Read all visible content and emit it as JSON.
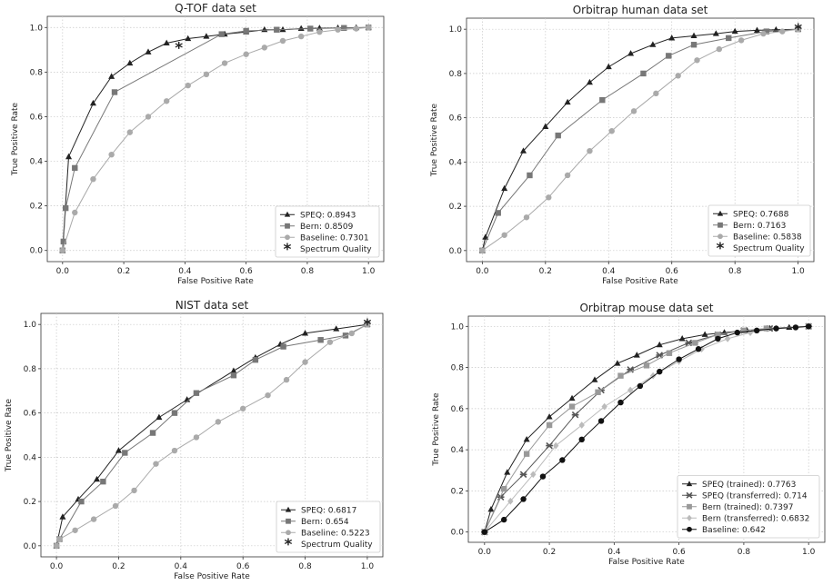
{
  "chart_data": [
    {
      "type": "line",
      "title": "Q-TOF data set",
      "xlabel": "False Positive Rate",
      "ylabel": "True Positive Rate",
      "xlim": [
        -0.05,
        1.05
      ],
      "ylim": [
        -0.05,
        1.05
      ],
      "xticks": [
        "0.0",
        "0.2",
        "0.4",
        "0.6",
        "0.8",
        "1.0"
      ],
      "yticks": [
        "0.0",
        "0.2",
        "0.4",
        "0.6",
        "0.8",
        "1.0"
      ],
      "grid": true,
      "legend_position": "lower-right",
      "series": [
        {
          "name": "SPEQ: 0.8943",
          "color": "#222222",
          "marker": "triangle",
          "x": [
            0,
            0.02,
            0.1,
            0.16,
            0.22,
            0.28,
            0.34,
            0.41,
            0.47,
            0.53,
            0.6,
            0.66,
            0.72,
            0.78,
            0.84,
            0.9,
            0.96,
            1.0
          ],
          "y": [
            0,
            0.42,
            0.66,
            0.78,
            0.84,
            0.89,
            0.93,
            0.95,
            0.96,
            0.97,
            0.98,
            0.99,
            0.99,
            0.995,
            0.997,
            0.998,
            0.999,
            1.0
          ]
        },
        {
          "name": "Bern: 0.8509",
          "color": "#777777",
          "marker": "square",
          "x": [
            0,
            0.003,
            0.01,
            0.04,
            0.17,
            0.52,
            0.6,
            0.7,
            0.81,
            0.92,
            1.0
          ],
          "y": [
            0,
            0.04,
            0.19,
            0.37,
            0.71,
            0.97,
            0.985,
            0.99,
            0.995,
            0.998,
            1.0
          ]
        },
        {
          "name": "Baseline: 0.7301",
          "color": "#aaaaaa",
          "marker": "circle",
          "x": [
            0,
            0.04,
            0.1,
            0.16,
            0.22,
            0.28,
            0.34,
            0.41,
            0.47,
            0.53,
            0.6,
            0.66,
            0.72,
            0.78,
            0.84,
            0.9,
            0.96,
            1.0
          ],
          "y": [
            0,
            0.17,
            0.32,
            0.43,
            0.53,
            0.6,
            0.67,
            0.74,
            0.79,
            0.84,
            0.88,
            0.91,
            0.94,
            0.96,
            0.98,
            0.99,
            0.995,
            1.0
          ]
        },
        {
          "name": "Spectrum Quality",
          "color": "#222222",
          "marker": "star",
          "x": [
            0.38
          ],
          "y": [
            0.91
          ]
        }
      ]
    },
    {
      "type": "line",
      "title": "Orbitrap human data set",
      "xlabel": "False Positive Rate",
      "ylabel": "True Positive Rate",
      "xlim": [
        -0.05,
        1.05
      ],
      "ylim": [
        -0.05,
        1.05
      ],
      "xticks": [
        "0.0",
        "0.2",
        "0.4",
        "0.6",
        "0.8",
        "1.0"
      ],
      "yticks": [
        "0.0",
        "0.2",
        "0.4",
        "0.6",
        "0.8",
        "1.0"
      ],
      "grid": true,
      "legend_position": "lower-right",
      "series": [
        {
          "name": "SPEQ: 0.7688",
          "color": "#222222",
          "marker": "triangle",
          "x": [
            0,
            0.01,
            0.07,
            0.13,
            0.2,
            0.27,
            0.34,
            0.4,
            0.47,
            0.54,
            0.6,
            0.67,
            0.74,
            0.8,
            0.87,
            0.93,
            1.0
          ],
          "y": [
            0,
            0.06,
            0.28,
            0.45,
            0.56,
            0.67,
            0.76,
            0.83,
            0.89,
            0.93,
            0.96,
            0.97,
            0.98,
            0.99,
            0.995,
            0.998,
            1.0
          ]
        },
        {
          "name": "Bern: 0.7163",
          "color": "#777777",
          "marker": "square",
          "x": [
            0,
            0.05,
            0.15,
            0.24,
            0.38,
            0.51,
            0.59,
            0.67,
            0.78,
            0.9,
            1.0
          ],
          "y": [
            0,
            0.17,
            0.34,
            0.52,
            0.68,
            0.8,
            0.88,
            0.93,
            0.96,
            0.99,
            1.0
          ]
        },
        {
          "name": "Baseline: 0.5838",
          "color": "#aaaaaa",
          "marker": "circle",
          "x": [
            0,
            0.07,
            0.14,
            0.21,
            0.27,
            0.34,
            0.41,
            0.48,
            0.55,
            0.62,
            0.68,
            0.75,
            0.82,
            0.89,
            0.95,
            1.0
          ],
          "y": [
            0,
            0.07,
            0.15,
            0.24,
            0.34,
            0.45,
            0.54,
            0.63,
            0.71,
            0.79,
            0.86,
            0.91,
            0.95,
            0.98,
            0.99,
            1.0
          ]
        },
        {
          "name": "Spectrum Quality",
          "color": "#222222",
          "marker": "star",
          "x": [
            1.0
          ],
          "y": [
            1.0
          ]
        }
      ]
    },
    {
      "type": "line",
      "title": "NIST data set",
      "xlabel": "False Positive Rate",
      "ylabel": "True Positive Rate",
      "xlim": [
        -0.05,
        1.05
      ],
      "ylim": [
        -0.05,
        1.05
      ],
      "xticks": [
        "0.0",
        "0.2",
        "0.4",
        "0.6",
        "0.8",
        "1.0"
      ],
      "yticks": [
        "0.0",
        "0.2",
        "0.4",
        "0.6",
        "0.8",
        "1.0"
      ],
      "grid": true,
      "legend_position": "lower-right",
      "series": [
        {
          "name": "SPEQ: 0.6817",
          "color": "#222222",
          "marker": "triangle",
          "x": [
            0,
            0.02,
            0.07,
            0.13,
            0.2,
            0.33,
            0.42,
            0.57,
            0.64,
            0.72,
            0.8,
            0.9,
            1.0
          ],
          "y": [
            0,
            0.13,
            0.21,
            0.3,
            0.43,
            0.58,
            0.66,
            0.79,
            0.85,
            0.91,
            0.96,
            0.98,
            1.0
          ]
        },
        {
          "name": "Bern: 0.654",
          "color": "#777777",
          "marker": "square",
          "x": [
            0,
            0.01,
            0.08,
            0.15,
            0.22,
            0.31,
            0.38,
            0.45,
            0.57,
            0.64,
            0.73,
            0.85,
            0.93,
            1.0
          ],
          "y": [
            0,
            0.03,
            0.2,
            0.29,
            0.42,
            0.51,
            0.6,
            0.69,
            0.77,
            0.84,
            0.9,
            0.93,
            0.95,
            1.0
          ]
        },
        {
          "name": "Baseline: 0.5223",
          "color": "#aaaaaa",
          "marker": "circle",
          "x": [
            0,
            0.01,
            0.06,
            0.12,
            0.19,
            0.25,
            0.32,
            0.38,
            0.45,
            0.52,
            0.6,
            0.68,
            0.74,
            0.8,
            0.88,
            0.95,
            1.0
          ],
          "y": [
            0,
            0.03,
            0.07,
            0.12,
            0.18,
            0.25,
            0.37,
            0.43,
            0.49,
            0.56,
            0.62,
            0.68,
            0.75,
            0.83,
            0.92,
            0.96,
            1.0
          ]
        },
        {
          "name": "Spectrum Quality",
          "color": "#222222",
          "marker": "star",
          "x": [
            1.0
          ],
          "y": [
            1.0
          ]
        }
      ]
    },
    {
      "type": "line",
      "title": "Orbitrap mouse data set",
      "xlabel": "False Positive Rate",
      "ylabel": "True Positive Rate",
      "xlim": [
        -0.05,
        1.05
      ],
      "ylim": [
        -0.05,
        1.05
      ],
      "xticks": [
        "0.0",
        "0.2",
        "0.4",
        "0.6",
        "0.8",
        "1.0"
      ],
      "yticks": [
        "0.0",
        "0.2",
        "0.4",
        "0.6",
        "0.8",
        "1.0"
      ],
      "grid": true,
      "legend_position": "lower-right",
      "series": [
        {
          "name": "SPEQ (trained): 0.7763",
          "color": "#222222",
          "marker": "triangle",
          "x": [
            0,
            0.02,
            0.07,
            0.13,
            0.2,
            0.27,
            0.34,
            0.41,
            0.47,
            0.54,
            0.61,
            0.68,
            0.74,
            0.81,
            0.88,
            0.94,
            1.0
          ],
          "y": [
            0,
            0.11,
            0.29,
            0.45,
            0.56,
            0.65,
            0.74,
            0.82,
            0.86,
            0.91,
            0.94,
            0.96,
            0.97,
            0.98,
            0.99,
            0.995,
            1.0
          ]
        },
        {
          "name": "SPEQ (transferred): 0.714",
          "color": "#555555",
          "marker": "x",
          "x": [
            0,
            0.05,
            0.12,
            0.2,
            0.28,
            0.36,
            0.45,
            0.54,
            0.63,
            0.72,
            0.8,
            0.88,
            1.0
          ],
          "y": [
            0,
            0.17,
            0.28,
            0.42,
            0.57,
            0.69,
            0.79,
            0.86,
            0.92,
            0.96,
            0.98,
            0.99,
            1.0
          ]
        },
        {
          "name": "Bern (trained): 0.7397",
          "color": "#999999",
          "marker": "square",
          "x": [
            0,
            0.06,
            0.13,
            0.2,
            0.27,
            0.35,
            0.42,
            0.5,
            0.57,
            0.65,
            0.72,
            0.8,
            0.87,
            1.0
          ],
          "y": [
            0,
            0.21,
            0.38,
            0.52,
            0.61,
            0.68,
            0.76,
            0.81,
            0.87,
            0.92,
            0.96,
            0.98,
            0.99,
            1.0
          ]
        },
        {
          "name": "Bern (transferred): 0.6832",
          "color": "#bbbbbb",
          "marker": "diamond",
          "x": [
            0,
            0.08,
            0.15,
            0.22,
            0.3,
            0.37,
            0.45,
            0.52,
            0.6,
            0.67,
            0.75,
            0.82,
            0.9,
            1.0
          ],
          "y": [
            0,
            0.15,
            0.28,
            0.42,
            0.52,
            0.61,
            0.69,
            0.76,
            0.83,
            0.89,
            0.94,
            0.97,
            0.99,
            1.0
          ]
        },
        {
          "name": "Baseline: 0.642",
          "color": "#111111",
          "marker": "circle",
          "x": [
            0,
            0.06,
            0.12,
            0.18,
            0.24,
            0.3,
            0.36,
            0.42,
            0.48,
            0.54,
            0.6,
            0.66,
            0.72,
            0.78,
            0.84,
            0.9,
            0.96,
            1.0
          ],
          "y": [
            0,
            0.06,
            0.16,
            0.27,
            0.35,
            0.45,
            0.54,
            0.63,
            0.71,
            0.78,
            0.84,
            0.89,
            0.94,
            0.97,
            0.98,
            0.99,
            0.995,
            1.0
          ]
        }
      ]
    }
  ]
}
